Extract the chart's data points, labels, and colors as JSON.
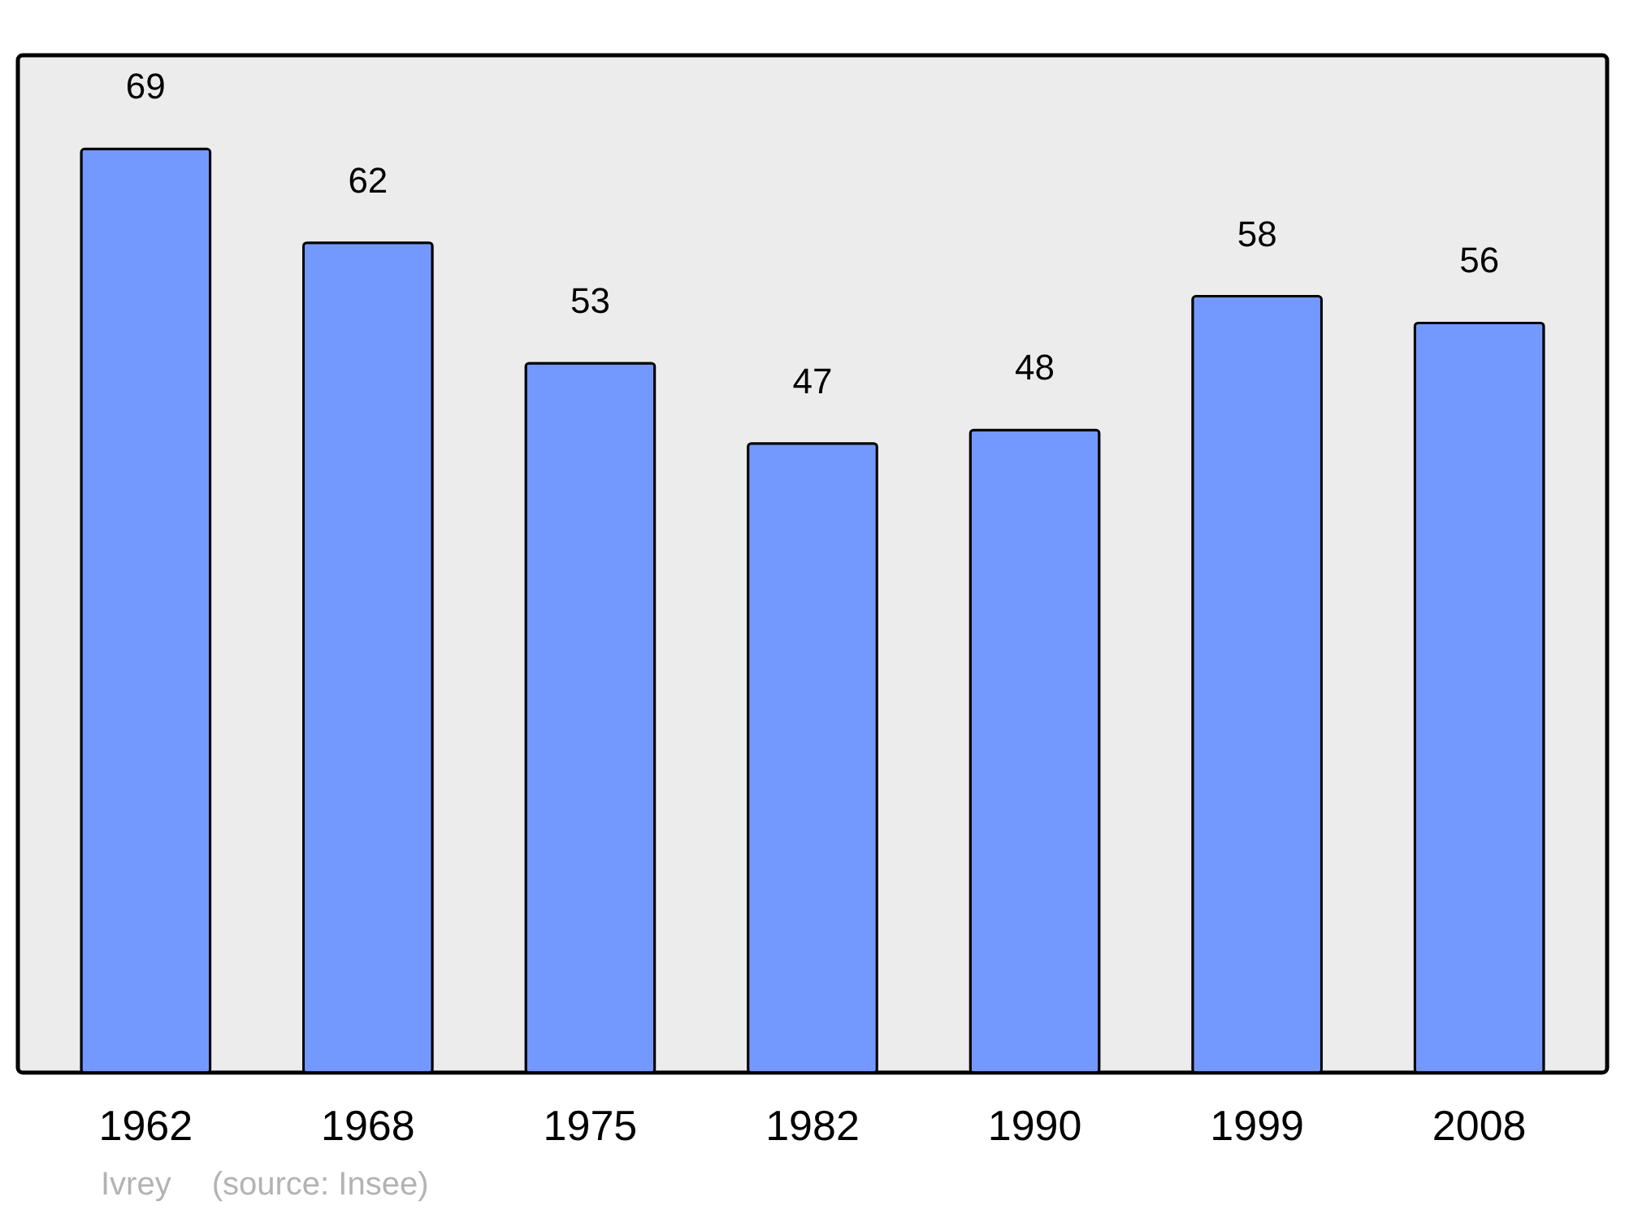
{
  "chart_data": {
    "type": "bar",
    "categories": [
      "1962",
      "1968",
      "1975",
      "1982",
      "1990",
      "1999",
      "2008"
    ],
    "values": [
      69,
      62,
      53,
      47,
      48,
      58,
      56
    ],
    "color": "#7399ff",
    "data_labels": true,
    "ylim": [
      0,
      76
    ],
    "tick_labels": "x",
    "annotations": [
      "Ivrey",
      "(source: Insee)"
    ]
  }
}
